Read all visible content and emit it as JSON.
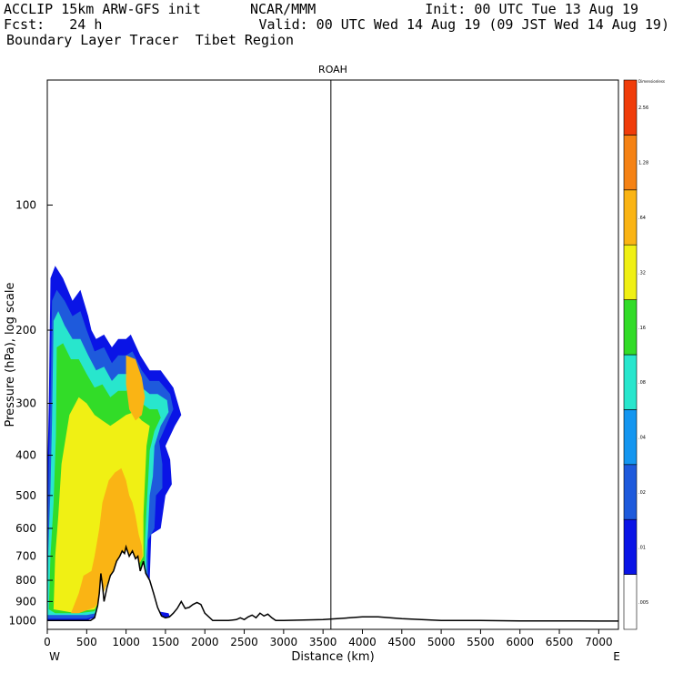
{
  "header": {
    "line1_left": "ACCLIP 15km ARW-GFS init",
    "line1_center": "NCAR/MMM",
    "line1_right": "Init: 00 UTC Tue 13 Aug 19",
    "line2_left": "Fcst:   24 h",
    "line2_right": "Valid: 00 UTC Wed 14 Aug 19 (09 JST Wed 14 Aug 19)",
    "line3_left": "Boundary Layer Tracer  Tibet Region"
  },
  "chart_data": {
    "type": "heatmap",
    "title": "ROAH",
    "xlabel": "Distance (km)",
    "ylabel": "Pressure (hPa), log scale",
    "x_ticks": [
      0,
      500,
      1000,
      1500,
      2000,
      2500,
      3000,
      3500,
      4000,
      4500,
      5000,
      5500,
      6000,
      6500,
      7000
    ],
    "y_ticks": [
      100,
      200,
      300,
      400,
      500,
      600,
      700,
      800,
      900,
      1000
    ],
    "xlim": [
      0,
      7250
    ],
    "ylim": [
      1050,
      50
    ],
    "y_scale": "log",
    "x_end_labels": {
      "left": "W",
      "right": "E"
    },
    "vertical_line_x": 3600,
    "colorbar": {
      "units_label": "Dimensionless",
      "levels": [
        ".005",
        ".01",
        ".02",
        ".04",
        ".08",
        ".16",
        ".32",
        ".64",
        "1.28",
        "2.56"
      ],
      "colors": [
        "#ffffff",
        "#0a14e6",
        "#1e5adc",
        "#1496f0",
        "#28e6cd",
        "#32dc28",
        "#f0f014",
        "#fab414",
        "#f58214",
        "#f03c0a"
      ]
    },
    "terrain_profile": {
      "x": [
        0,
        300,
        550,
        600,
        640,
        660,
        680,
        700,
        720,
        760,
        800,
        840,
        880,
        920,
        950,
        980,
        1000,
        1040,
        1080,
        1120,
        1150,
        1180,
        1220,
        1250,
        1300,
        1350,
        1400,
        1450,
        1500,
        1550,
        1600,
        1650,
        1700,
        1750,
        1800,
        1850,
        1900,
        1950,
        2000,
        2100,
        2200,
        2300,
        2400,
        2450,
        2500,
        2550,
        2600,
        2650,
        2700,
        2750,
        2800,
        2850,
        2900,
        3000,
        3500,
        4000,
        4200,
        4500,
        5000,
        5500,
        6000,
        6500,
        7000,
        7250
      ],
      "p": [
        1000,
        1000,
        1000,
        985,
        920,
        860,
        770,
        820,
        900,
        830,
        780,
        760,
        720,
        700,
        680,
        690,
        665,
        700,
        680,
        710,
        700,
        760,
        720,
        770,
        800,
        860,
        930,
        975,
        985,
        980,
        960,
        935,
        900,
        935,
        930,
        915,
        905,
        915,
        960,
        1000,
        1000,
        1000,
        995,
        985,
        995,
        980,
        970,
        985,
        960,
        975,
        965,
        985,
        1000,
        1000,
        995,
        980,
        980,
        990,
        1000,
        1000,
        1002,
        1002,
        1003,
        1003
      ]
    },
    "tracer_regions": [
      {
        "level": ".01",
        "outline": [
          [
            0,
            990
          ],
          [
            0,
            700
          ],
          [
            0,
            450
          ],
          [
            20,
            300
          ],
          [
            40,
            150
          ],
          [
            100,
            140
          ],
          [
            200,
            150
          ],
          [
            320,
            170
          ],
          [
            420,
            160
          ],
          [
            520,
            185
          ],
          [
            560,
            200
          ],
          [
            620,
            210
          ],
          [
            720,
            205
          ],
          [
            820,
            220
          ],
          [
            900,
            210
          ],
          [
            1000,
            210
          ],
          [
            1060,
            205
          ],
          [
            1180,
            230
          ],
          [
            1300,
            250
          ],
          [
            1440,
            250
          ],
          [
            1600,
            275
          ],
          [
            1700,
            320
          ],
          [
            1620,
            340
          ],
          [
            1500,
            380
          ],
          [
            1560,
            410
          ],
          [
            1580,
            470
          ],
          [
            1500,
            500
          ],
          [
            1440,
            600
          ],
          [
            1320,
            620
          ],
          [
            1300,
            800
          ],
          [
            1320,
            900
          ],
          [
            1400,
            950
          ],
          [
            1540,
            960
          ],
          [
            1560,
            985
          ],
          [
            1480,
            990
          ],
          [
            1400,
            960
          ],
          [
            1250,
            860
          ],
          [
            1150,
            740
          ],
          [
            1040,
            700
          ],
          [
            900,
            760
          ],
          [
            800,
            780
          ],
          [
            700,
            870
          ],
          [
            620,
            980
          ],
          [
            500,
            1000
          ],
          [
            0,
            1000
          ]
        ]
      },
      {
        "level": ".02",
        "outline": [
          [
            0,
            980
          ],
          [
            0,
            700
          ],
          [
            20,
            420
          ],
          [
            40,
            300
          ],
          [
            60,
            170
          ],
          [
            120,
            160
          ],
          [
            220,
            170
          ],
          [
            320,
            185
          ],
          [
            420,
            180
          ],
          [
            500,
            200
          ],
          [
            600,
            225
          ],
          [
            720,
            220
          ],
          [
            820,
            240
          ],
          [
            900,
            230
          ],
          [
            1000,
            230
          ],
          [
            1080,
            225
          ],
          [
            1200,
            250
          ],
          [
            1300,
            265
          ],
          [
            1420,
            265
          ],
          [
            1560,
            285
          ],
          [
            1600,
            310
          ],
          [
            1520,
            335
          ],
          [
            1420,
            370
          ],
          [
            1460,
            420
          ],
          [
            1460,
            480
          ],
          [
            1380,
            500
          ],
          [
            1360,
            600
          ],
          [
            1280,
            640
          ],
          [
            1280,
            800
          ],
          [
            1300,
            880
          ],
          [
            1250,
            860
          ],
          [
            1150,
            740
          ],
          [
            1040,
            700
          ],
          [
            900,
            760
          ],
          [
            800,
            780
          ],
          [
            700,
            870
          ],
          [
            620,
            975
          ],
          [
            500,
            990
          ],
          [
            0,
            990
          ]
        ]
      },
      {
        "level": ".08",
        "outline": [
          [
            0,
            950
          ],
          [
            10,
            700
          ],
          [
            40,
            480
          ],
          [
            60,
            330
          ],
          [
            80,
            190
          ],
          [
            140,
            180
          ],
          [
            220,
            195
          ],
          [
            320,
            210
          ],
          [
            420,
            210
          ],
          [
            520,
            230
          ],
          [
            620,
            250
          ],
          [
            720,
            245
          ],
          [
            820,
            265
          ],
          [
            900,
            255
          ],
          [
            1000,
            255
          ],
          [
            1100,
            250
          ],
          [
            1200,
            275
          ],
          [
            1300,
            285
          ],
          [
            1400,
            285
          ],
          [
            1520,
            295
          ],
          [
            1540,
            315
          ],
          [
            1440,
            340
          ],
          [
            1360,
            380
          ],
          [
            1340,
            450
          ],
          [
            1300,
            500
          ],
          [
            1280,
            600
          ],
          [
            1260,
            700
          ],
          [
            1260,
            850
          ],
          [
            1150,
            740
          ],
          [
            1040,
            700
          ],
          [
            900,
            760
          ],
          [
            800,
            780
          ],
          [
            700,
            870
          ],
          [
            620,
            960
          ],
          [
            500,
            970
          ],
          [
            0,
            970
          ]
        ]
      },
      {
        "level": ".16",
        "outline": [
          [
            20,
            940
          ],
          [
            40,
            700
          ],
          [
            80,
            520
          ],
          [
            110,
            360
          ],
          [
            120,
            220
          ],
          [
            200,
            215
          ],
          [
            300,
            235
          ],
          [
            400,
            235
          ],
          [
            500,
            255
          ],
          [
            600,
            275
          ],
          [
            700,
            270
          ],
          [
            800,
            290
          ],
          [
            900,
            280
          ],
          [
            1000,
            280
          ],
          [
            1100,
            275
          ],
          [
            1200,
            300
          ],
          [
            1300,
            310
          ],
          [
            1400,
            310
          ],
          [
            1440,
            325
          ],
          [
            1360,
            350
          ],
          [
            1300,
            390
          ],
          [
            1280,
            460
          ],
          [
            1260,
            540
          ],
          [
            1240,
            650
          ],
          [
            1240,
            820
          ],
          [
            1150,
            740
          ],
          [
            1040,
            700
          ],
          [
            900,
            760
          ],
          [
            800,
            780
          ],
          [
            700,
            870
          ],
          [
            600,
            950
          ],
          [
            400,
            960
          ],
          [
            100,
            960
          ]
        ]
      },
      {
        "level": ".32",
        "outline": [
          [
            80,
            940
          ],
          [
            100,
            700
          ],
          [
            140,
            560
          ],
          [
            180,
            420
          ],
          [
            280,
            320
          ],
          [
            400,
            290
          ],
          [
            500,
            300
          ],
          [
            600,
            320
          ],
          [
            700,
            330
          ],
          [
            800,
            340
          ],
          [
            900,
            330
          ],
          [
            1000,
            320
          ],
          [
            1100,
            315
          ],
          [
            1200,
            330
          ],
          [
            1300,
            340
          ],
          [
            1260,
            380
          ],
          [
            1240,
            460
          ],
          [
            1220,
            560
          ],
          [
            1220,
            700
          ],
          [
            1150,
            740
          ],
          [
            1040,
            700
          ],
          [
            900,
            760
          ],
          [
            800,
            780
          ],
          [
            700,
            870
          ],
          [
            600,
            940
          ],
          [
            300,
            955
          ]
        ]
      },
      {
        "level": ".64",
        "outline": [
          [
            300,
            960
          ],
          [
            400,
            860
          ],
          [
            460,
            780
          ],
          [
            560,
            760
          ],
          [
            600,
            700
          ],
          [
            660,
            600
          ],
          [
            700,
            520
          ],
          [
            780,
            460
          ],
          [
            860,
            440
          ],
          [
            940,
            430
          ],
          [
            1000,
            460
          ],
          [
            1040,
            500
          ],
          [
            1080,
            520
          ],
          [
            1120,
            560
          ],
          [
            1160,
            620
          ],
          [
            1200,
            660
          ],
          [
            1210,
            700
          ],
          [
            1150,
            740
          ],
          [
            1040,
            700
          ],
          [
            900,
            760
          ],
          [
            800,
            780
          ],
          [
            700,
            870
          ],
          [
            600,
            930
          ],
          [
            400,
            960
          ]
        ]
      },
      {
        "level": ".64",
        "outline": [
          [
            1000,
            230
          ],
          [
            1120,
            235
          ],
          [
            1200,
            260
          ],
          [
            1240,
            290
          ],
          [
            1200,
            320
          ],
          [
            1120,
            330
          ],
          [
            1040,
            310
          ],
          [
            1000,
            270
          ]
        ]
      }
    ]
  }
}
